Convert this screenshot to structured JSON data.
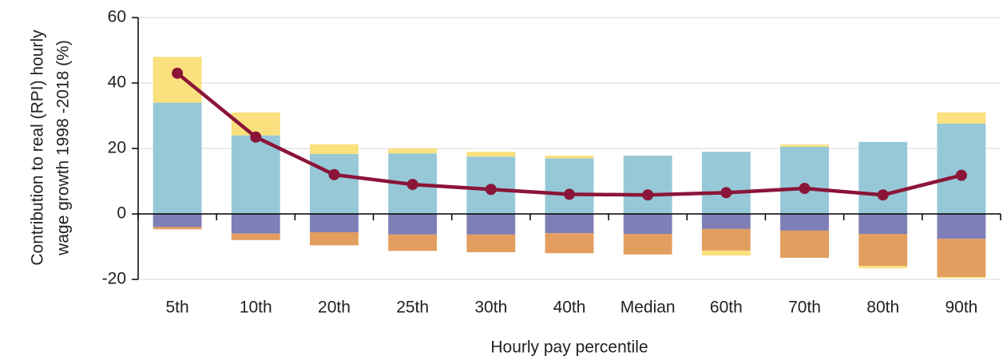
{
  "chart_data": {
    "type": "bar",
    "stacked": true,
    "y_label": [
      "Contribution to real (RPI) hourly",
      "wage growth 1998 -2018 (%)"
    ],
    "x_label": "Hourly pay percentile",
    "categories": [
      "5th",
      "10th",
      "20th",
      "25th",
      "30th",
      "40th",
      "Median",
      "60th",
      "70th",
      "80th",
      "90th"
    ],
    "series": [
      {
        "color": "#96c8d8",
        "values": [
          34,
          24,
          18.3,
          18.5,
          17.5,
          17,
          17.8,
          19,
          20.5,
          22,
          27.6
        ]
      },
      {
        "color": "#fbe17e",
        "values": [
          14,
          7,
          3,
          1.5,
          1.5,
          0.8,
          0,
          0,
          0.7,
          0,
          3.4
        ]
      },
      {
        "color": "#7f7fb8",
        "values": [
          -4,
          -6,
          -5.6,
          -6.3,
          -6.3,
          -5.9,
          -6.1,
          -4.6,
          -5.1,
          -6.1,
          -7.6
        ]
      },
      {
        "color": "#e39e5f",
        "values": [
          -0.7,
          -2,
          -4,
          -5,
          -5.4,
          -6.1,
          -6.3,
          -6.6,
          -8.3,
          -9.8,
          -11.7
        ]
      },
      {
        "color": "#fbe17e",
        "values": [
          0,
          0,
          0,
          0,
          0,
          0,
          0,
          -1.5,
          0,
          -0.7,
          -0.3
        ]
      },
      {
        "type": "line",
        "color": "#8b1538",
        "values": [
          43,
          23.5,
          12,
          9,
          7.5,
          6,
          5.8,
          6.5,
          7.8,
          5.8,
          11.8
        ]
      }
    ],
    "ylim": [
      -20,
      60
    ],
    "yticks": [
      -20,
      0,
      20,
      40,
      60
    ],
    "grid": true
  }
}
